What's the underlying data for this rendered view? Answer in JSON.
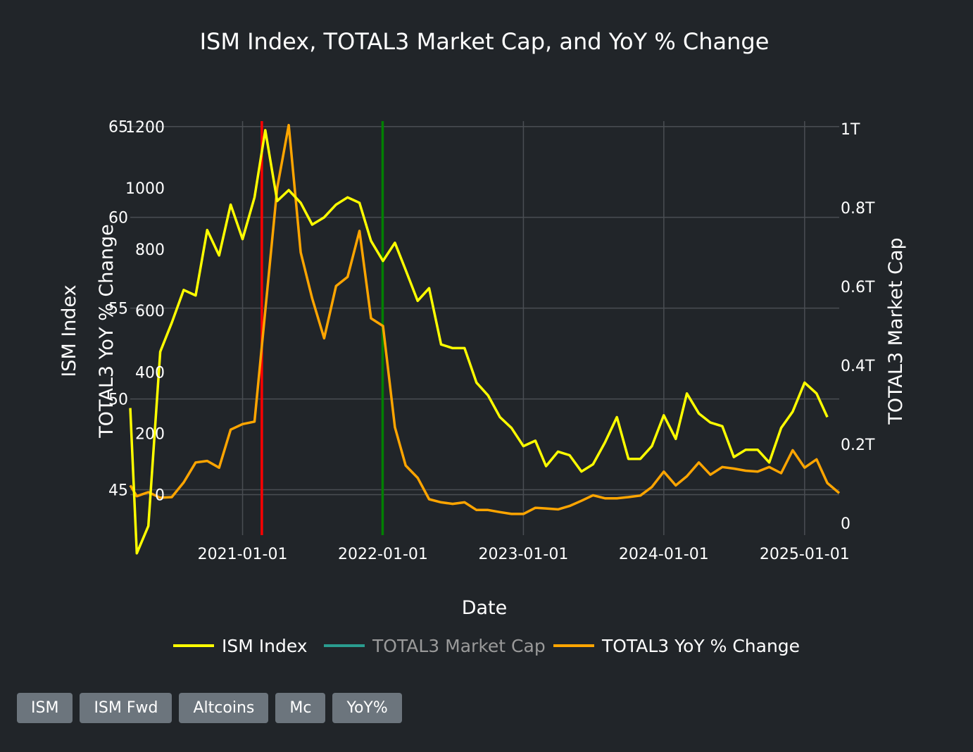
{
  "chart_data": {
    "type": "line",
    "title": "ISM Index, TOTAL3 Market Cap, and YoY % Change",
    "xlabel": "Date",
    "x_tick_labels": [
      "2021-01-01",
      "2022-01-01",
      "2023-01-01",
      "2024-01-01",
      "2025-01-01"
    ],
    "axes": {
      "ism": {
        "label": "ISM Index",
        "range": [
          42.5,
          65.3
        ],
        "ticks": [
          "45",
          "50",
          "55",
          "60",
          "65"
        ],
        "tick_values": [
          45,
          50,
          55,
          60,
          65
        ]
      },
      "yoy": {
        "label": "TOTAL3 YoY % Change",
        "range": [
          -132,
          1218
        ],
        "ticks": [
          "0",
          "200",
          "400",
          "600",
          "800",
          "1000",
          "1200"
        ],
        "tick_values": [
          0,
          200,
          400,
          600,
          800,
          1000,
          1200
        ]
      },
      "mcap": {
        "label": "TOTAL3 Market Cap",
        "range": [
          -0.03,
          1.02
        ],
        "ticks": [
          "0",
          "0.2T",
          "0.4T",
          "0.6T",
          "0.8T",
          "1T"
        ],
        "tick_values": [
          0,
          0.2,
          0.4,
          0.6,
          0.8,
          1.0
        ]
      }
    },
    "x_range": [
      "2020-03-15",
      "2025-04-01"
    ],
    "vertical_lines": [
      {
        "date": "2021-02-20",
        "color": "#ff0000"
      },
      {
        "date": "2021-12-31",
        "color": "#008000"
      }
    ],
    "series": [
      {
        "name": "ISM Index",
        "color": "#ffff00",
        "axis": "ism",
        "points": [
          [
            "2020-03-15",
            49.5
          ],
          [
            "2020-04-01",
            41.5
          ],
          [
            "2020-05-01",
            43.0
          ],
          [
            "2020-06-01",
            52.6
          ],
          [
            "2020-07-01",
            54.2
          ],
          [
            "2020-08-01",
            56.0
          ],
          [
            "2020-09-01",
            55.7
          ],
          [
            "2020-10-01",
            59.3
          ],
          [
            "2020-11-01",
            57.9
          ],
          [
            "2020-12-01",
            60.7
          ],
          [
            "2021-01-01",
            58.8
          ],
          [
            "2021-02-01",
            61.1
          ],
          [
            "2021-03-01",
            64.8
          ],
          [
            "2021-04-01",
            60.9
          ],
          [
            "2021-05-01",
            61.5
          ],
          [
            "2021-06-01",
            60.8
          ],
          [
            "2021-07-01",
            59.6
          ],
          [
            "2021-08-01",
            60.0
          ],
          [
            "2021-09-01",
            60.7
          ],
          [
            "2021-10-01",
            61.1
          ],
          [
            "2021-11-01",
            60.8
          ],
          [
            "2021-12-01",
            58.7
          ],
          [
            "2022-01-01",
            57.6
          ],
          [
            "2022-02-01",
            58.6
          ],
          [
            "2022-03-01",
            57.1
          ],
          [
            "2022-04-01",
            55.4
          ],
          [
            "2022-05-01",
            56.1
          ],
          [
            "2022-06-01",
            53.0
          ],
          [
            "2022-07-01",
            52.8
          ],
          [
            "2022-08-01",
            52.8
          ],
          [
            "2022-09-01",
            50.9
          ],
          [
            "2022-10-01",
            50.2
          ],
          [
            "2022-11-01",
            49.0
          ],
          [
            "2022-12-01",
            48.4
          ],
          [
            "2023-01-01",
            47.4
          ],
          [
            "2023-02-01",
            47.7
          ],
          [
            "2023-03-01",
            46.3
          ],
          [
            "2023-04-01",
            47.1
          ],
          [
            "2023-05-01",
            46.9
          ],
          [
            "2023-06-01",
            46.0
          ],
          [
            "2023-07-01",
            46.4
          ],
          [
            "2023-08-01",
            47.6
          ],
          [
            "2023-09-01",
            49.0
          ],
          [
            "2023-10-01",
            46.7
          ],
          [
            "2023-11-01",
            46.7
          ],
          [
            "2023-12-01",
            47.4
          ],
          [
            "2024-01-01",
            49.1
          ],
          [
            "2024-02-01",
            47.8
          ],
          [
            "2024-03-01",
            50.3
          ],
          [
            "2024-04-01",
            49.2
          ],
          [
            "2024-05-01",
            48.7
          ],
          [
            "2024-06-01",
            48.5
          ],
          [
            "2024-07-01",
            46.8
          ],
          [
            "2024-08-01",
            47.2
          ],
          [
            "2024-09-01",
            47.2
          ],
          [
            "2024-10-01",
            46.5
          ],
          [
            "2024-11-01",
            48.4
          ],
          [
            "2024-12-01",
            49.3
          ],
          [
            "2025-01-01",
            50.9
          ],
          [
            "2025-02-01",
            50.3
          ],
          [
            "2025-03-01",
            49.0
          ]
        ]
      },
      {
        "name": "TOTAL3 Market Cap",
        "color": "#2a9d8f",
        "axis": "mcap",
        "legend_only": true,
        "points": []
      },
      {
        "name": "TOTAL3 YoY % Change",
        "color": "#ffa500",
        "axis": "yoy",
        "points": [
          [
            "2020-03-15",
            30
          ],
          [
            "2020-04-01",
            -5
          ],
          [
            "2020-05-01",
            8
          ],
          [
            "2020-06-01",
            -10
          ],
          [
            "2020-07-01",
            -8
          ],
          [
            "2020-08-01",
            40
          ],
          [
            "2020-09-01",
            105
          ],
          [
            "2020-10-01",
            110
          ],
          [
            "2020-11-01",
            88
          ],
          [
            "2020-12-01",
            212
          ],
          [
            "2021-01-01",
            230
          ],
          [
            "2021-02-01",
            238
          ],
          [
            "2021-03-01",
            600
          ],
          [
            "2021-04-01",
            1000
          ],
          [
            "2021-05-01",
            1205
          ],
          [
            "2021-06-01",
            790
          ],
          [
            "2021-07-01",
            640
          ],
          [
            "2021-08-01",
            510
          ],
          [
            "2021-09-01",
            680
          ],
          [
            "2021-10-01",
            710
          ],
          [
            "2021-11-01",
            860
          ],
          [
            "2021-12-01",
            575
          ],
          [
            "2022-01-01",
            550
          ],
          [
            "2022-02-01",
            220
          ],
          [
            "2022-03-01",
            95
          ],
          [
            "2022-04-01",
            55
          ],
          [
            "2022-05-01",
            -15
          ],
          [
            "2022-06-01",
            -25
          ],
          [
            "2022-07-01",
            -30
          ],
          [
            "2022-08-01",
            -25
          ],
          [
            "2022-09-01",
            -50
          ],
          [
            "2022-10-01",
            -50
          ],
          [
            "2022-11-01",
            -57
          ],
          [
            "2022-12-01",
            -63
          ],
          [
            "2023-01-01",
            -63
          ],
          [
            "2023-02-01",
            -43
          ],
          [
            "2023-03-01",
            -45
          ],
          [
            "2023-04-01",
            -48
          ],
          [
            "2023-05-01",
            -37
          ],
          [
            "2023-06-01",
            -20
          ],
          [
            "2023-07-01",
            -2
          ],
          [
            "2023-08-01",
            -12
          ],
          [
            "2023-09-01",
            -12
          ],
          [
            "2023-10-01",
            -8
          ],
          [
            "2023-11-01",
            -3
          ],
          [
            "2023-12-01",
            25
          ],
          [
            "2024-01-01",
            75
          ],
          [
            "2024-02-01",
            30
          ],
          [
            "2024-03-01",
            60
          ],
          [
            "2024-04-01",
            105
          ],
          [
            "2024-05-01",
            65
          ],
          [
            "2024-06-01",
            90
          ],
          [
            "2024-07-01",
            85
          ],
          [
            "2024-08-01",
            78
          ],
          [
            "2024-09-01",
            75
          ],
          [
            "2024-10-01",
            90
          ],
          [
            "2024-11-01",
            70
          ],
          [
            "2024-12-01",
            145
          ],
          [
            "2025-01-01",
            88
          ],
          [
            "2025-02-01",
            115
          ],
          [
            "2025-03-01",
            38
          ],
          [
            "2025-04-01",
            5
          ]
        ]
      }
    ],
    "legend": {
      "placement": "bottom",
      "hidden_series": [
        "TOTAL3 Market Cap"
      ]
    },
    "grid": true
  },
  "buttons": [
    {
      "label": "ISM"
    },
    {
      "label": "ISM Fwd"
    },
    {
      "label": "Altcoins"
    },
    {
      "label": "Mc"
    },
    {
      "label": "YoY%"
    }
  ],
  "colors": {
    "background": "#212529",
    "grid": "#4a4e53",
    "button_bg": "#6c757d",
    "text": "#ffffff",
    "legend_muted": "#9a9a9a"
  }
}
